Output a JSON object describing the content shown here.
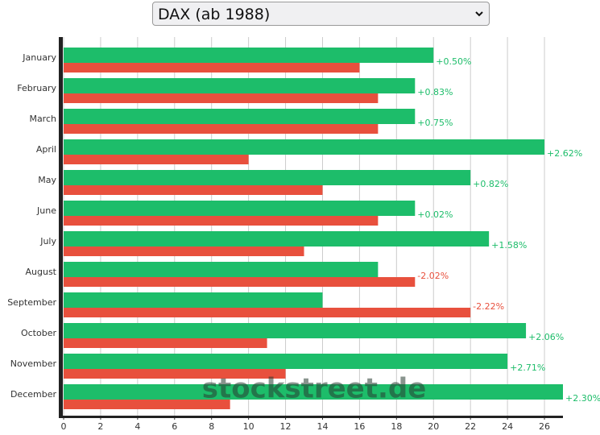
{
  "selector": "DAX (ab 1988)",
  "watermark": "stockstreet.de",
  "chart_data": {
    "type": "bar",
    "orientation": "horizontal",
    "categories": [
      "January",
      "February",
      "March",
      "April",
      "May",
      "June",
      "July",
      "August",
      "September",
      "October",
      "November",
      "December"
    ],
    "series": [
      {
        "color": "#1dbd6a",
        "values": [
          20,
          19,
          19,
          26,
          22,
          19,
          23,
          17,
          14,
          25,
          24,
          27
        ]
      },
      {
        "color": "#e8503d",
        "values": [
          16,
          17,
          17,
          10,
          14,
          17,
          13,
          19,
          22,
          11,
          12,
          9
        ]
      }
    ],
    "annotations": [
      "+0.50%",
      "+0.83%",
      "+0.75%",
      "+2.62%",
      "+0.82%",
      "+0.02%",
      "+1.58%",
      "-2.02%",
      "-2.22%",
      "+2.06%",
      "+2.71%",
      "+2.30%"
    ],
    "xlim": [
      0,
      27
    ],
    "xticks": [
      0,
      2,
      4,
      6,
      8,
      10,
      12,
      14,
      16,
      18,
      20,
      22,
      24,
      26
    ],
    "grid": true
  }
}
